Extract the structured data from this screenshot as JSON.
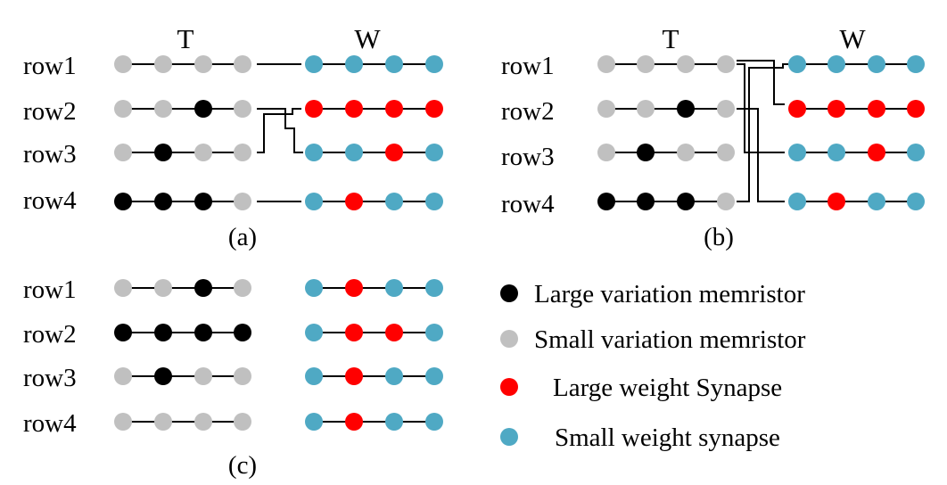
{
  "colors": {
    "large_variation": "#000000",
    "small_variation": "#c0c0c0",
    "large_weight": "#ff0000",
    "small_weight": "#4fa9c4"
  },
  "headers": {
    "t": "T",
    "w": "W"
  },
  "panels": [
    {
      "id": "a",
      "caption": "(a)",
      "rows": [
        {
          "label": "row1",
          "t": [
            "S",
            "S",
            "S",
            "S"
          ],
          "w": [
            "s",
            "s",
            "s",
            "s"
          ]
        },
        {
          "label": "row2",
          "t": [
            "S",
            "S",
            "L",
            "S"
          ],
          "w": [
            "l",
            "l",
            "l",
            "l"
          ]
        },
        {
          "label": "row3",
          "t": [
            "S",
            "L",
            "S",
            "S"
          ],
          "w": [
            "s",
            "s",
            "l",
            "s"
          ]
        },
        {
          "label": "row4",
          "t": [
            "L",
            "L",
            "L",
            "S"
          ],
          "w": [
            "s",
            "l",
            "s",
            "s"
          ]
        }
      ]
    },
    {
      "id": "b",
      "caption": "(b)",
      "rows": [
        {
          "label": "row1",
          "t": [
            "S",
            "S",
            "S",
            "S"
          ],
          "w": [
            "s",
            "s",
            "s",
            "s"
          ]
        },
        {
          "label": "row2",
          "t": [
            "S",
            "S",
            "L",
            "S"
          ],
          "w": [
            "l",
            "l",
            "l",
            "l"
          ]
        },
        {
          "label": "row3",
          "t": [
            "S",
            "L",
            "S",
            "S"
          ],
          "w": [
            "s",
            "s",
            "l",
            "s"
          ]
        },
        {
          "label": "row4",
          "t": [
            "L",
            "L",
            "L",
            "S"
          ],
          "w": [
            "s",
            "l",
            "s",
            "s"
          ]
        }
      ]
    },
    {
      "id": "c",
      "caption": "(c)",
      "rows": [
        {
          "label": "row1",
          "t": [
            "S",
            "S",
            "L",
            "S"
          ],
          "w": [
            "s",
            "l",
            "s",
            "s"
          ]
        },
        {
          "label": "row2",
          "t": [
            "L",
            "L",
            "L",
            "L"
          ],
          "w": [
            "s",
            "l",
            "l",
            "s"
          ]
        },
        {
          "label": "row3",
          "t": [
            "S",
            "L",
            "S",
            "S"
          ],
          "w": [
            "s",
            "l",
            "s",
            "s"
          ]
        },
        {
          "label": "row4",
          "t": [
            "S",
            "S",
            "S",
            "S"
          ],
          "w": [
            "s",
            "l",
            "s",
            "s"
          ]
        }
      ]
    }
  ],
  "legend": [
    {
      "color_key": "large_variation",
      "label": "Large variation memristor"
    },
    {
      "color_key": "small_variation",
      "label": "Small variation memristor"
    },
    {
      "color_key": "large_weight",
      "label": "Large weight Synapse"
    },
    {
      "color_key": "small_weight",
      "label": "Small weight synapse"
    }
  ]
}
